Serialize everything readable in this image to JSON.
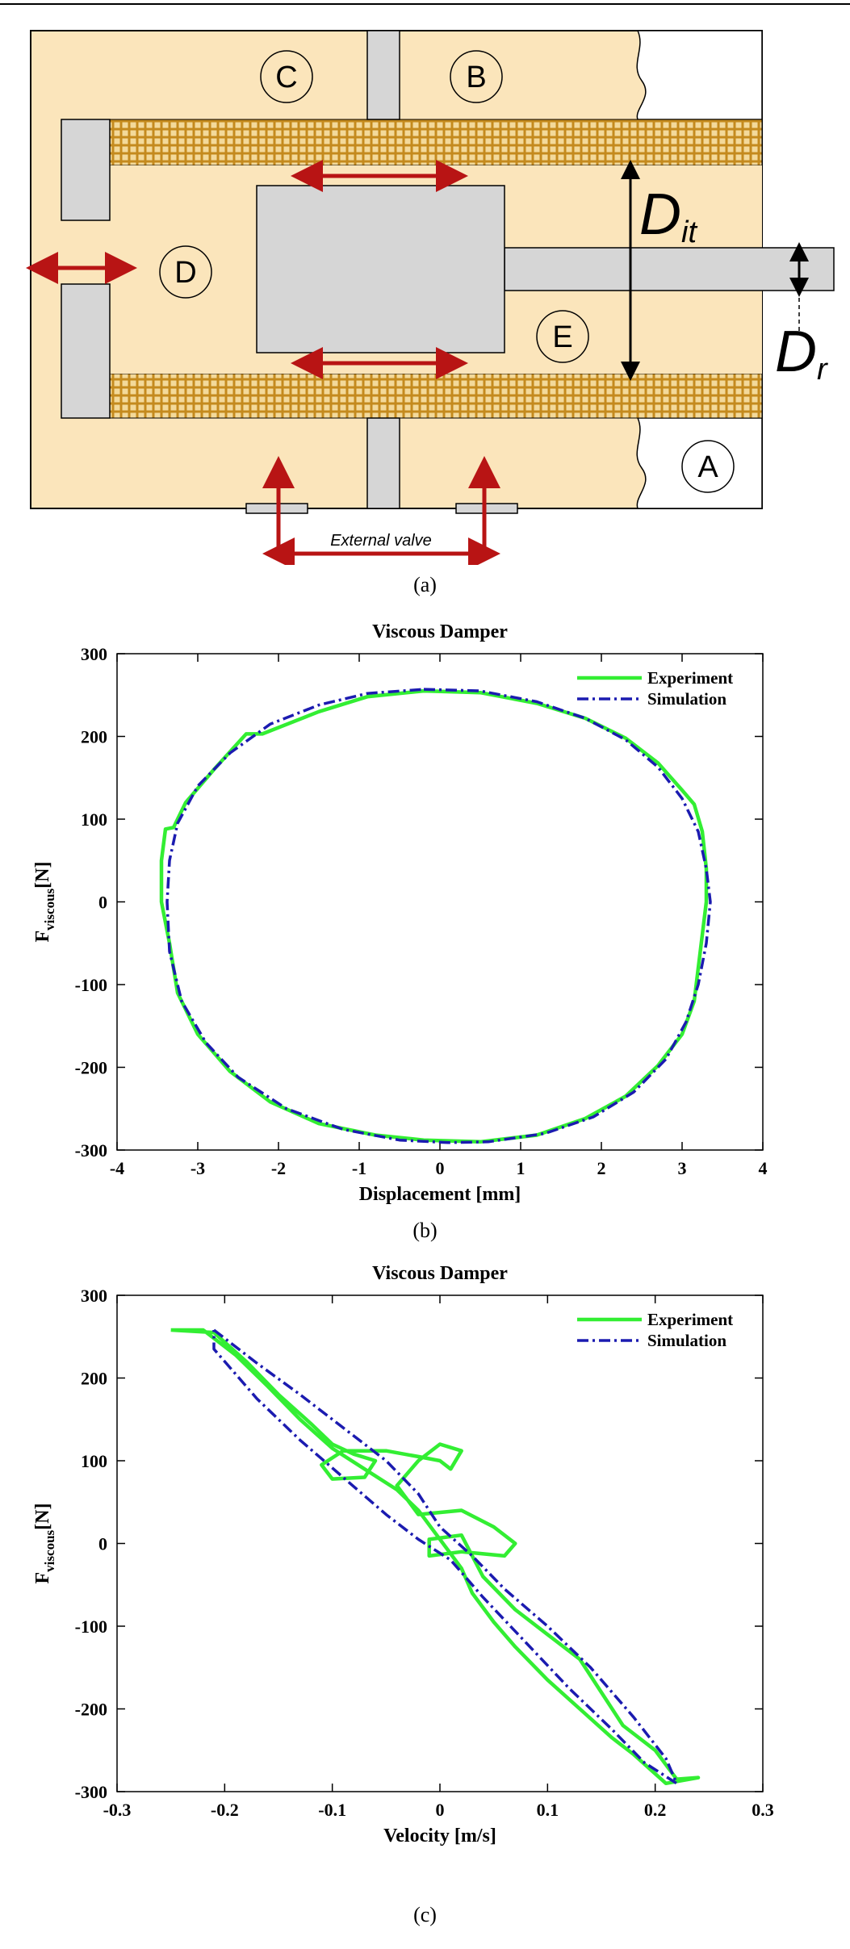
{
  "figure": {
    "panel_a": {
      "caption": "(a)",
      "chamber_labels": {
        "A": "A",
        "B": "B",
        "C": "C",
        "D": "D",
        "E": "E"
      },
      "dimension_labels": {
        "d_main": "D",
        "d_main_sub": "it",
        "d_rod": "D",
        "d_rod_sub": "r"
      },
      "external_valve_label": "External valve",
      "colors": {
        "fluid": "#fbe5bb",
        "solid": "#d6d6d6",
        "mesh": "#c48a1e",
        "arrow": "#b81414"
      }
    },
    "panel_b": {
      "caption": "(b)"
    },
    "panel_c": {
      "caption": "(c)"
    }
  },
  "chart_data": [
    {
      "type": "line",
      "title": "Viscous Damper",
      "xlabel": "Displacement [mm]",
      "ylabel": "F",
      "ylabel_sub": "viscous",
      "ylabel_unit": "[N]",
      "xlim": [
        -4,
        4
      ],
      "ylim": [
        -300,
        300
      ],
      "xticks": [
        -4,
        -3,
        -2,
        -1,
        0,
        1,
        2,
        3,
        4
      ],
      "yticks": [
        -300,
        -200,
        -100,
        0,
        100,
        200,
        300
      ],
      "grid": false,
      "legend": "top-right",
      "series": [
        {
          "name": "Experiment",
          "color": "#33ee33",
          "style": "solid",
          "points": [
            [
              -0.2,
              255
            ],
            [
              0.5,
              253
            ],
            [
              1.2,
              240
            ],
            [
              1.8,
              222
            ],
            [
              2.3,
              198
            ],
            [
              2.7,
              168
            ],
            [
              3.0,
              135
            ],
            [
              3.15,
              118
            ],
            [
              3.25,
              85
            ],
            [
              3.3,
              40
            ],
            [
              3.3,
              0
            ],
            [
              3.25,
              -40
            ],
            [
              3.2,
              -80
            ],
            [
              3.15,
              -120
            ],
            [
              3.0,
              -160
            ],
            [
              2.7,
              -198
            ],
            [
              2.3,
              -235
            ],
            [
              1.8,
              -262
            ],
            [
              1.2,
              -282
            ],
            [
              0.5,
              -290
            ],
            [
              -0.2,
              -288
            ],
            [
              -0.8,
              -282
            ],
            [
              -1.5,
              -268
            ],
            [
              -2.1,
              -242
            ],
            [
              -2.6,
              -205
            ],
            [
              -3.0,
              -160
            ],
            [
              -3.25,
              -110
            ],
            [
              -3.35,
              -50
            ],
            [
              -3.45,
              0
            ],
            [
              -3.45,
              50
            ],
            [
              -3.4,
              88
            ],
            [
              -3.3,
              90
            ],
            [
              -3.15,
              120
            ],
            [
              -2.8,
              160
            ],
            [
              -2.4,
              203
            ],
            [
              -2.2,
              203
            ],
            [
              -1.5,
              230
            ],
            [
              -0.9,
              248
            ],
            [
              -0.2,
              255
            ]
          ]
        },
        {
          "name": "Simulation",
          "color": "#1b1bb0",
          "style": "dashdot",
          "points": [
            [
              -0.2,
              257
            ],
            [
              0.5,
              255
            ],
            [
              1.2,
              242
            ],
            [
              1.8,
              222
            ],
            [
              2.3,
              196
            ],
            [
              2.7,
              163
            ],
            [
              3.0,
              125
            ],
            [
              3.2,
              85
            ],
            [
              3.3,
              40
            ],
            [
              3.35,
              0
            ],
            [
              3.3,
              -50
            ],
            [
              3.2,
              -100
            ],
            [
              3.05,
              -145
            ],
            [
              2.8,
              -190
            ],
            [
              2.4,
              -230
            ],
            [
              1.9,
              -260
            ],
            [
              1.3,
              -280
            ],
            [
              0.6,
              -290
            ],
            [
              0.1,
              -291
            ],
            [
              -0.5,
              -288
            ],
            [
              -1.2,
              -275
            ],
            [
              -1.9,
              -250
            ],
            [
              -2.5,
              -212
            ],
            [
              -2.9,
              -170
            ],
            [
              -3.2,
              -120
            ],
            [
              -3.35,
              -60
            ],
            [
              -3.38,
              0
            ],
            [
              -3.35,
              50
            ],
            [
              -3.25,
              95
            ],
            [
              -3.0,
              140
            ],
            [
              -2.6,
              180
            ],
            [
              -2.1,
              215
            ],
            [
              -1.5,
              238
            ],
            [
              -0.9,
              252
            ],
            [
              -0.2,
              257
            ]
          ]
        }
      ]
    },
    {
      "type": "line",
      "title": "Viscous Damper",
      "xlabel": "Velocity [m/s]",
      "ylabel": "F",
      "ylabel_sub": "viscous",
      "ylabel_unit": "[N]",
      "xlim": [
        -0.3,
        0.3
      ],
      "ylim": [
        -300,
        300
      ],
      "xticks": [
        -0.3,
        -0.2,
        -0.1,
        0,
        0.1,
        0.2,
        0.3
      ],
      "yticks": [
        -300,
        -200,
        -100,
        0,
        100,
        200,
        300
      ],
      "grid": false,
      "legend": "top-right",
      "series": [
        {
          "name": "Experiment",
          "color": "#33ee33",
          "style": "solid",
          "points": [
            [
              -0.25,
              258
            ],
            [
              -0.21,
              255
            ],
            [
              -0.18,
              220
            ],
            [
              -0.15,
              180
            ],
            [
              -0.12,
              145
            ],
            [
              -0.1,
              120
            ],
            [
              -0.08,
              108
            ],
            [
              -0.06,
              100
            ],
            [
              -0.07,
              80
            ],
            [
              -0.1,
              78
            ],
            [
              -0.11,
              95
            ],
            [
              -0.09,
              112
            ],
            [
              -0.05,
              112
            ],
            [
              -0.02,
              105
            ],
            [
              0.0,
              100
            ],
            [
              0.01,
              90
            ],
            [
              0.02,
              112
            ],
            [
              0.0,
              120
            ],
            [
              -0.02,
              100
            ],
            [
              -0.04,
              70
            ],
            [
              -0.02,
              35
            ],
            [
              0.02,
              40
            ],
            [
              0.05,
              20
            ],
            [
              0.07,
              0
            ],
            [
              0.06,
              -15
            ],
            [
              0.02,
              -10
            ],
            [
              -0.01,
              -15
            ],
            [
              -0.01,
              5
            ],
            [
              0.02,
              10
            ],
            [
              0.04,
              -40
            ],
            [
              0.07,
              -80
            ],
            [
              0.1,
              -110
            ],
            [
              0.13,
              -140
            ],
            [
              0.15,
              -180
            ],
            [
              0.17,
              -220
            ],
            [
              0.2,
              -250
            ],
            [
              0.22,
              -285
            ],
            [
              0.24,
              -283
            ],
            [
              0.21,
              -290
            ],
            [
              0.18,
              -255
            ],
            [
              0.16,
              -235
            ],
            [
              0.13,
              -200
            ],
            [
              0.1,
              -165
            ],
            [
              0.07,
              -125
            ],
            [
              0.05,
              -95
            ],
            [
              0.03,
              -60
            ],
            [
              0.02,
              -30
            ],
            [
              0.0,
              5
            ],
            [
              -0.02,
              40
            ],
            [
              -0.04,
              65
            ],
            [
              -0.07,
              90
            ],
            [
              -0.1,
              115
            ],
            [
              -0.13,
              150
            ],
            [
              -0.16,
              190
            ],
            [
              -0.19,
              228
            ],
            [
              -0.22,
              258
            ],
            [
              -0.25,
              258
            ]
          ]
        },
        {
          "name": "Simulation",
          "color": "#1b1bb0",
          "style": "dashdot",
          "points": [
            [
              -0.21,
              258
            ],
            [
              -0.17,
              218
            ],
            [
              -0.13,
              180
            ],
            [
              -0.09,
              140
            ],
            [
              -0.05,
              100
            ],
            [
              -0.02,
              60
            ],
            [
              0.0,
              20
            ],
            [
              0.03,
              -15
            ],
            [
              0.06,
              -55
            ],
            [
              0.1,
              -100
            ],
            [
              0.14,
              -150
            ],
            [
              0.18,
              -210
            ],
            [
              0.21,
              -260
            ],
            [
              0.22,
              -290
            ],
            [
              0.19,
              -265
            ],
            [
              0.16,
              -225
            ],
            [
              0.12,
              -175
            ],
            [
              0.08,
              -120
            ],
            [
              0.04,
              -65
            ],
            [
              0.01,
              -20
            ],
            [
              -0.02,
              5
            ],
            [
              -0.05,
              35
            ],
            [
              -0.09,
              80
            ],
            [
              -0.13,
              125
            ],
            [
              -0.17,
              175
            ],
            [
              -0.21,
              235
            ],
            [
              -0.21,
              258
            ]
          ]
        }
      ]
    }
  ]
}
